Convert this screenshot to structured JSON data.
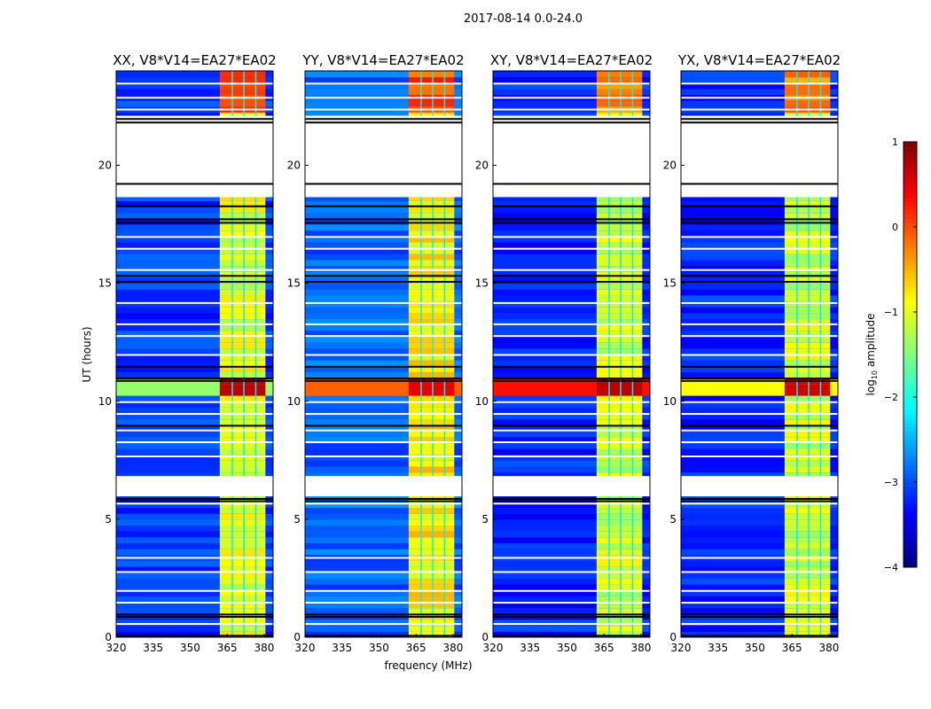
{
  "chart_data": {
    "type": "heatmap",
    "suptitle": "2017-08-14 0.0-24.0",
    "xlabel": "frequency (MHz)",
    "ylabel": "UT (hours)",
    "xlim": [
      320,
      383.6
    ],
    "ylim": [
      0,
      24
    ],
    "xticks": [
      "320",
      "335",
      "350",
      "365",
      "380"
    ],
    "xtick_values": [
      320,
      335,
      350,
      365,
      380
    ],
    "yticks": [
      "0",
      "5",
      "10",
      "15",
      "20"
    ],
    "ytick_values": [
      0,
      5,
      10,
      15,
      20
    ],
    "colorbar": {
      "label": "log10 amplitude",
      "label_main": "log",
      "label_sub": "10",
      "label_rest": " amplitude",
      "range": [
        -4,
        1
      ],
      "ticks": [
        "1",
        "0",
        "−1",
        "−2",
        "−3",
        "−4"
      ],
      "tick_values": [
        1,
        0,
        -1,
        -2,
        -3,
        -4
      ],
      "colormap": "jet"
    },
    "band": {
      "start_mhz": 362,
      "end_mhz": 380.5,
      "gaps_mhz": [
        366.8,
        371.5,
        376.3
      ]
    },
    "flagged_time_ranges": [
      [
        18.65,
        22.1
      ],
      [
        5.97,
        6.83
      ]
    ],
    "white_lines_h": [
      22.4,
      22.9,
      23.5,
      21.0,
      17.0,
      16.5,
      15.6,
      14.2,
      13.3,
      12.8,
      12.0,
      10.0,
      9.5,
      8.8,
      8.3,
      7.7,
      5.7,
      3.4,
      2.8,
      2.0,
      1.5,
      0.6
    ],
    "black_lines_h": [
      22.0,
      21.85,
      19.25,
      18.3,
      17.75,
      17.6,
      15.35,
      15.1,
      11.5,
      11.0,
      10.9,
      9.0,
      5.9,
      5.8,
      1.0,
      0.9,
      0.1
    ],
    "panels": [
      {
        "title": "XX, V8*V14=EA27*EA02",
        "background": -3.1,
        "band_level": -1.0,
        "top_band_level": 0.0,
        "rfi": {
          "start_h": 10.2,
          "end_h": 10.8,
          "level": -1.4,
          "band_level": 0.7
        }
      },
      {
        "title": "YY, V8*V14=EA27*EA02",
        "background": -2.9,
        "band_level": -0.8,
        "top_band_level": 0.0,
        "rfi": {
          "start_h": 10.2,
          "end_h": 10.8,
          "level": -0.1,
          "band_level": 0.5
        }
      },
      {
        "title": "XY, V8*V14=EA27*EA02",
        "background": -3.2,
        "band_level": -1.1,
        "top_band_level": -0.3,
        "rfi": {
          "start_h": 10.2,
          "end_h": 10.8,
          "level": 0.3,
          "band_level": 0.7
        }
      },
      {
        "title": "YX, V8*V14=EA27*EA02",
        "background": -3.2,
        "band_level": -1.1,
        "top_band_level": -0.2,
        "rfi": {
          "start_h": 10.2,
          "end_h": 10.8,
          "level": -0.9,
          "band_level": 0.6
        }
      }
    ]
  }
}
